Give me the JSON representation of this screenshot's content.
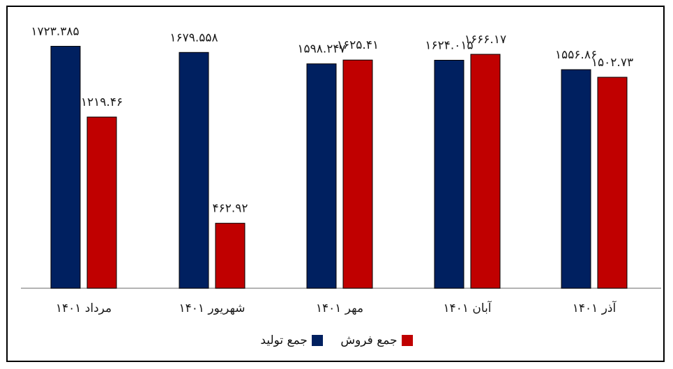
{
  "chart_data": {
    "type": "bar",
    "categories": [
      "مرداد ۱۴۰۱",
      "شهریور ۱۴۰۱",
      "مهر ۱۴۰۱",
      "آبان ۱۴۰۱",
      "آذر ۱۴۰۱"
    ],
    "series": [
      {
        "name": "جمع تولید",
        "color": "#002060",
        "values": [
          1723.385,
          1679.558,
          1598.247,
          1624.015,
          1556.86
        ],
        "labels": [
          "۱۷۲۳.۳۸۵",
          "۱۶۷۹.۵۵۸",
          "۱۵۹۸.۲۴۷",
          "۱۶۲۴.۰۱۵",
          "۱۵۵۶.۸۶"
        ]
      },
      {
        "name": "جمع فروش",
        "color": "#C00000",
        "values": [
          1219.46,
          462.92,
          1625.41,
          1666.17,
          1502.73
        ],
        "labels": [
          "۱۲۱۹.۴۶",
          "۴۶۲.۹۲",
          "۱۶۲۵.۴۱",
          "۱۶۶۶.۱۷",
          "۱۵۰۲.۷۳"
        ]
      }
    ],
    "ylim": [
      0,
      1800
    ],
    "grid": false,
    "legend_position": "bottom"
  }
}
